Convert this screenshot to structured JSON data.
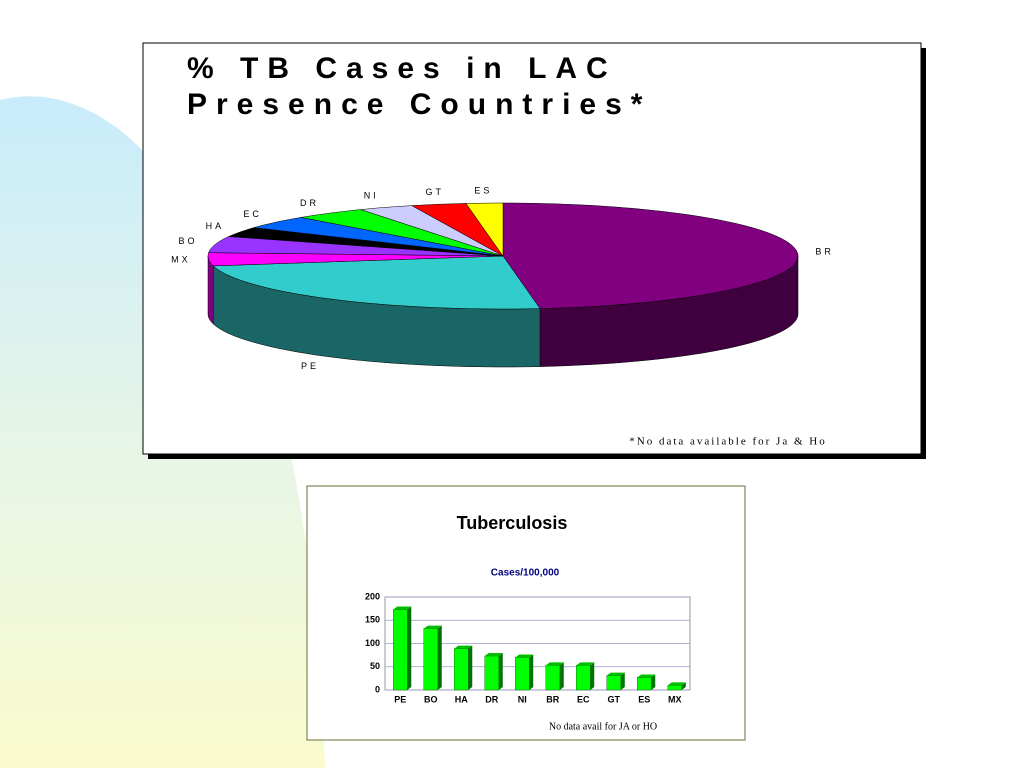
{
  "chart_data": [
    {
      "type": "pie",
      "title": "% TB Cases in LAC\nPresence Countries*",
      "categories": [
        "BR",
        "PE",
        "MX",
        "BO",
        "HA",
        "EC",
        "DR",
        "NI",
        "GT",
        "ES"
      ],
      "values": [
        48,
        24,
        4,
        5,
        3,
        4,
        4,
        3,
        3,
        2
      ],
      "colors": [
        "#800080",
        "#33cccc",
        "#ff00ff",
        "#9933ff",
        "#000000",
        "#0066ff",
        "#00ff00",
        "#ccccff",
        "#ff0000",
        "#ffff00"
      ],
      "note": "*No data available for Ja & Ho"
    },
    {
      "type": "bar",
      "title": "Tuberculosis",
      "subtitle": "Cases/100,000",
      "categories": [
        "PE",
        "BO",
        "HA",
        "DR",
        "NI",
        "BR",
        "EC",
        "GT",
        "ES",
        "MX"
      ],
      "values": [
        173,
        132,
        89,
        73,
        70,
        53,
        53,
        31,
        27,
        10
      ],
      "color": "#00ff00",
      "ylim": [
        0,
        200
      ],
      "yticks": [
        0,
        50,
        100,
        150,
        200
      ],
      "grid": true,
      "note": "No data avail for JA or HO"
    }
  ]
}
